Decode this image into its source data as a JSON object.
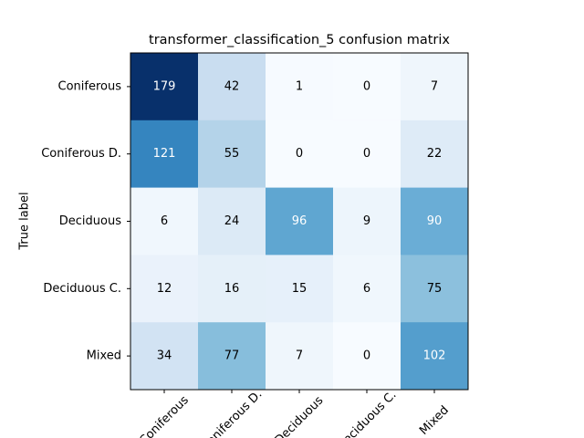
{
  "chart_data": {
    "type": "heatmap",
    "title": "transformer_classification_5 confusion matrix",
    "ylabel": "True label",
    "x_categories": [
      "Coniferous",
      "Coniferous D.",
      "Deciduous",
      "Deciduous C.",
      "Mixed"
    ],
    "y_categories": [
      "Coniferous",
      "Coniferous D.",
      "Deciduous",
      "Deciduous C.",
      "Mixed"
    ],
    "values": [
      [
        179,
        42,
        1,
        0,
        7
      ],
      [
        121,
        55,
        0,
        0,
        22
      ],
      [
        6,
        24,
        96,
        9,
        90
      ],
      [
        12,
        16,
        15,
        6,
        75
      ],
      [
        34,
        77,
        7,
        0,
        102
      ]
    ],
    "colormap": "Blues"
  }
}
